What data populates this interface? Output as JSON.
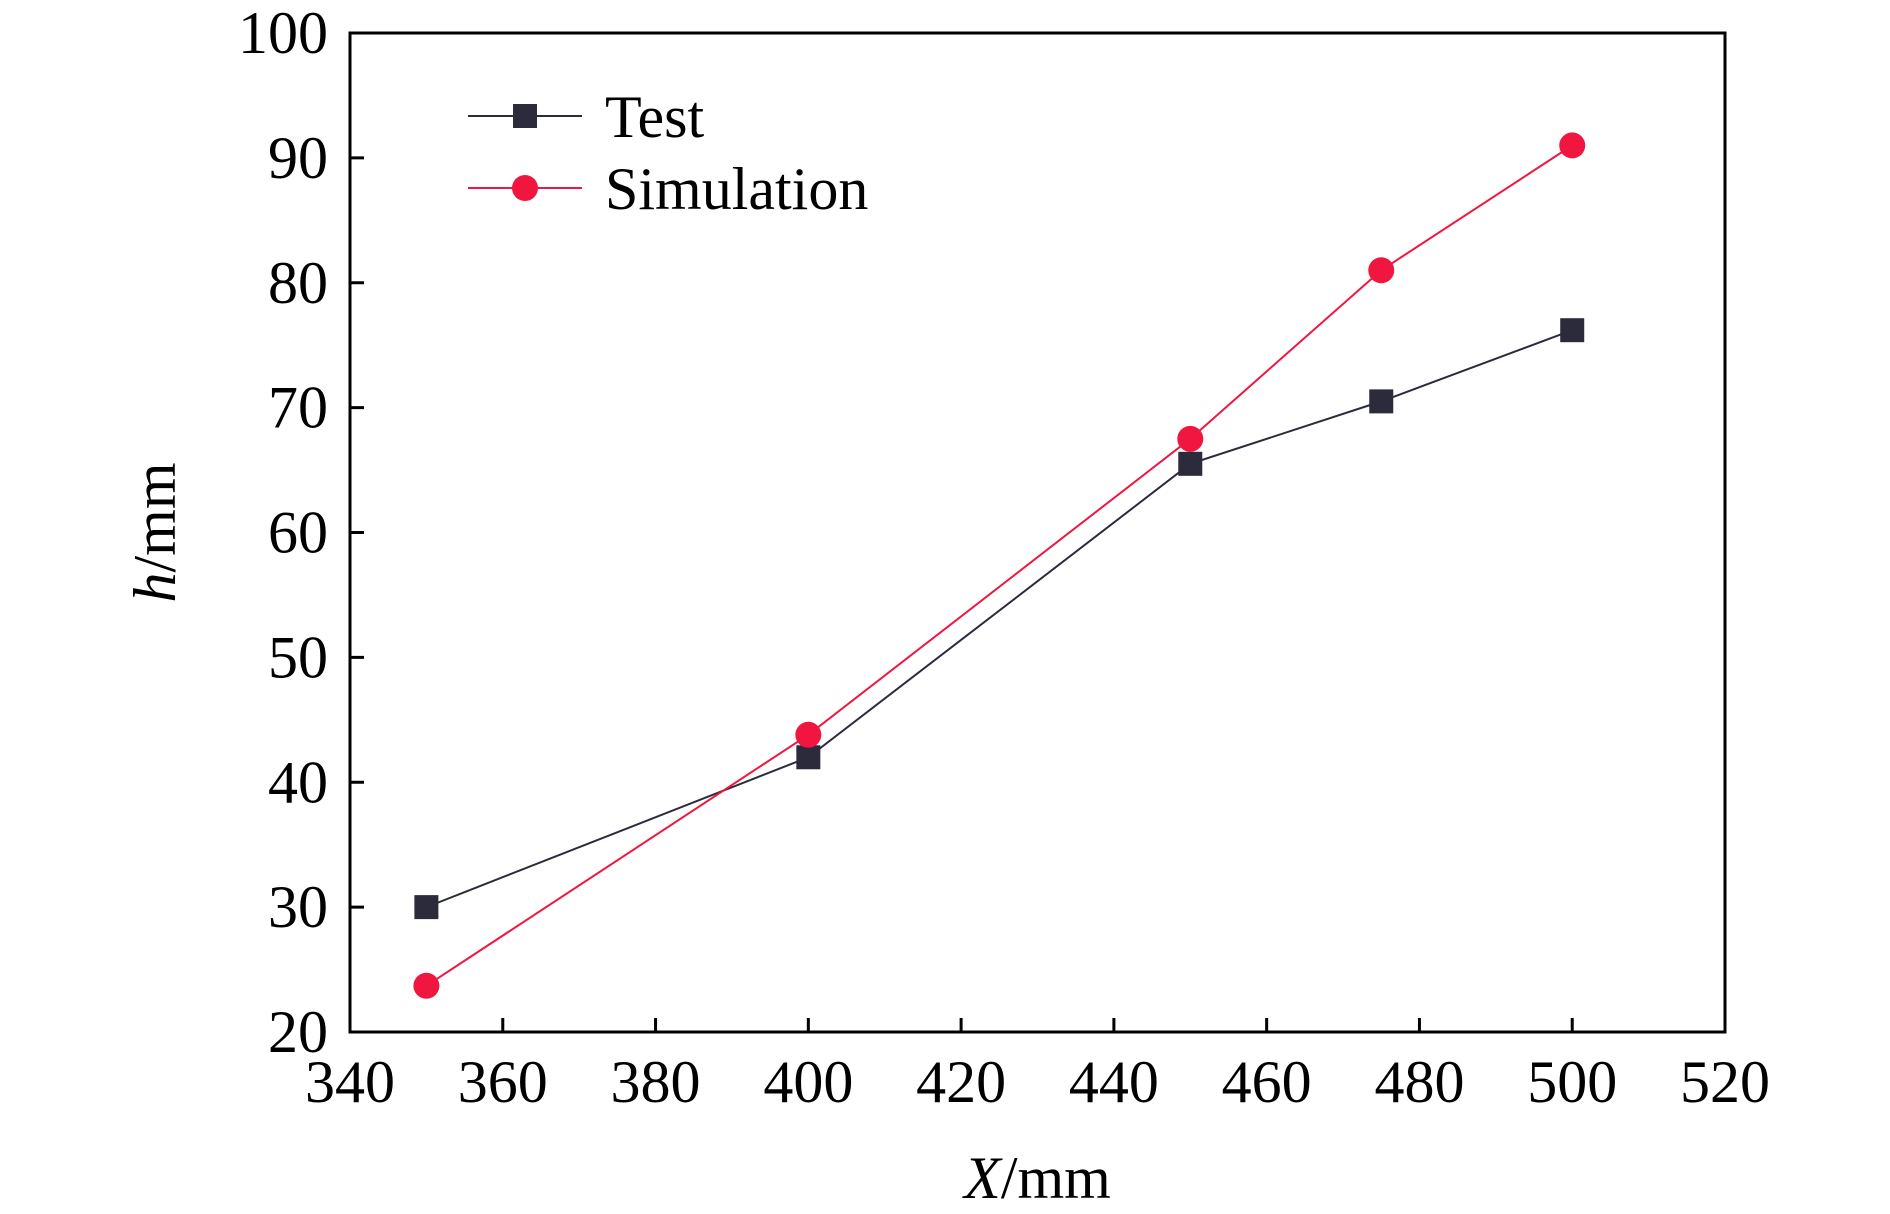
{
  "chart_data": {
    "type": "line",
    "title": "",
    "xlabel": {
      "variable": "X",
      "unit": "/mm"
    },
    "ylabel": {
      "variable": "h",
      "unit": "/mm"
    },
    "xlim": [
      340,
      520
    ],
    "ylim": [
      20,
      100
    ],
    "xticks": [
      340,
      360,
      380,
      400,
      420,
      440,
      460,
      480,
      500,
      520
    ],
    "yticks": [
      20,
      30,
      40,
      50,
      60,
      70,
      80,
      90,
      100
    ],
    "grid": false,
    "legend": {
      "placement": "top-left"
    },
    "series": [
      {
        "name": "Test",
        "color": "#2b2b3b",
        "marker": "square",
        "x": [
          350,
          400,
          450,
          475,
          500
        ],
        "y": [
          30,
          42,
          65.5,
          70.5,
          76.2
        ]
      },
      {
        "name": "Simulation",
        "color": "#f0163f",
        "marker": "circle",
        "x": [
          350,
          400,
          450,
          475,
          500
        ],
        "y": [
          23.7,
          43.8,
          67.5,
          81,
          91
        ]
      }
    ]
  }
}
